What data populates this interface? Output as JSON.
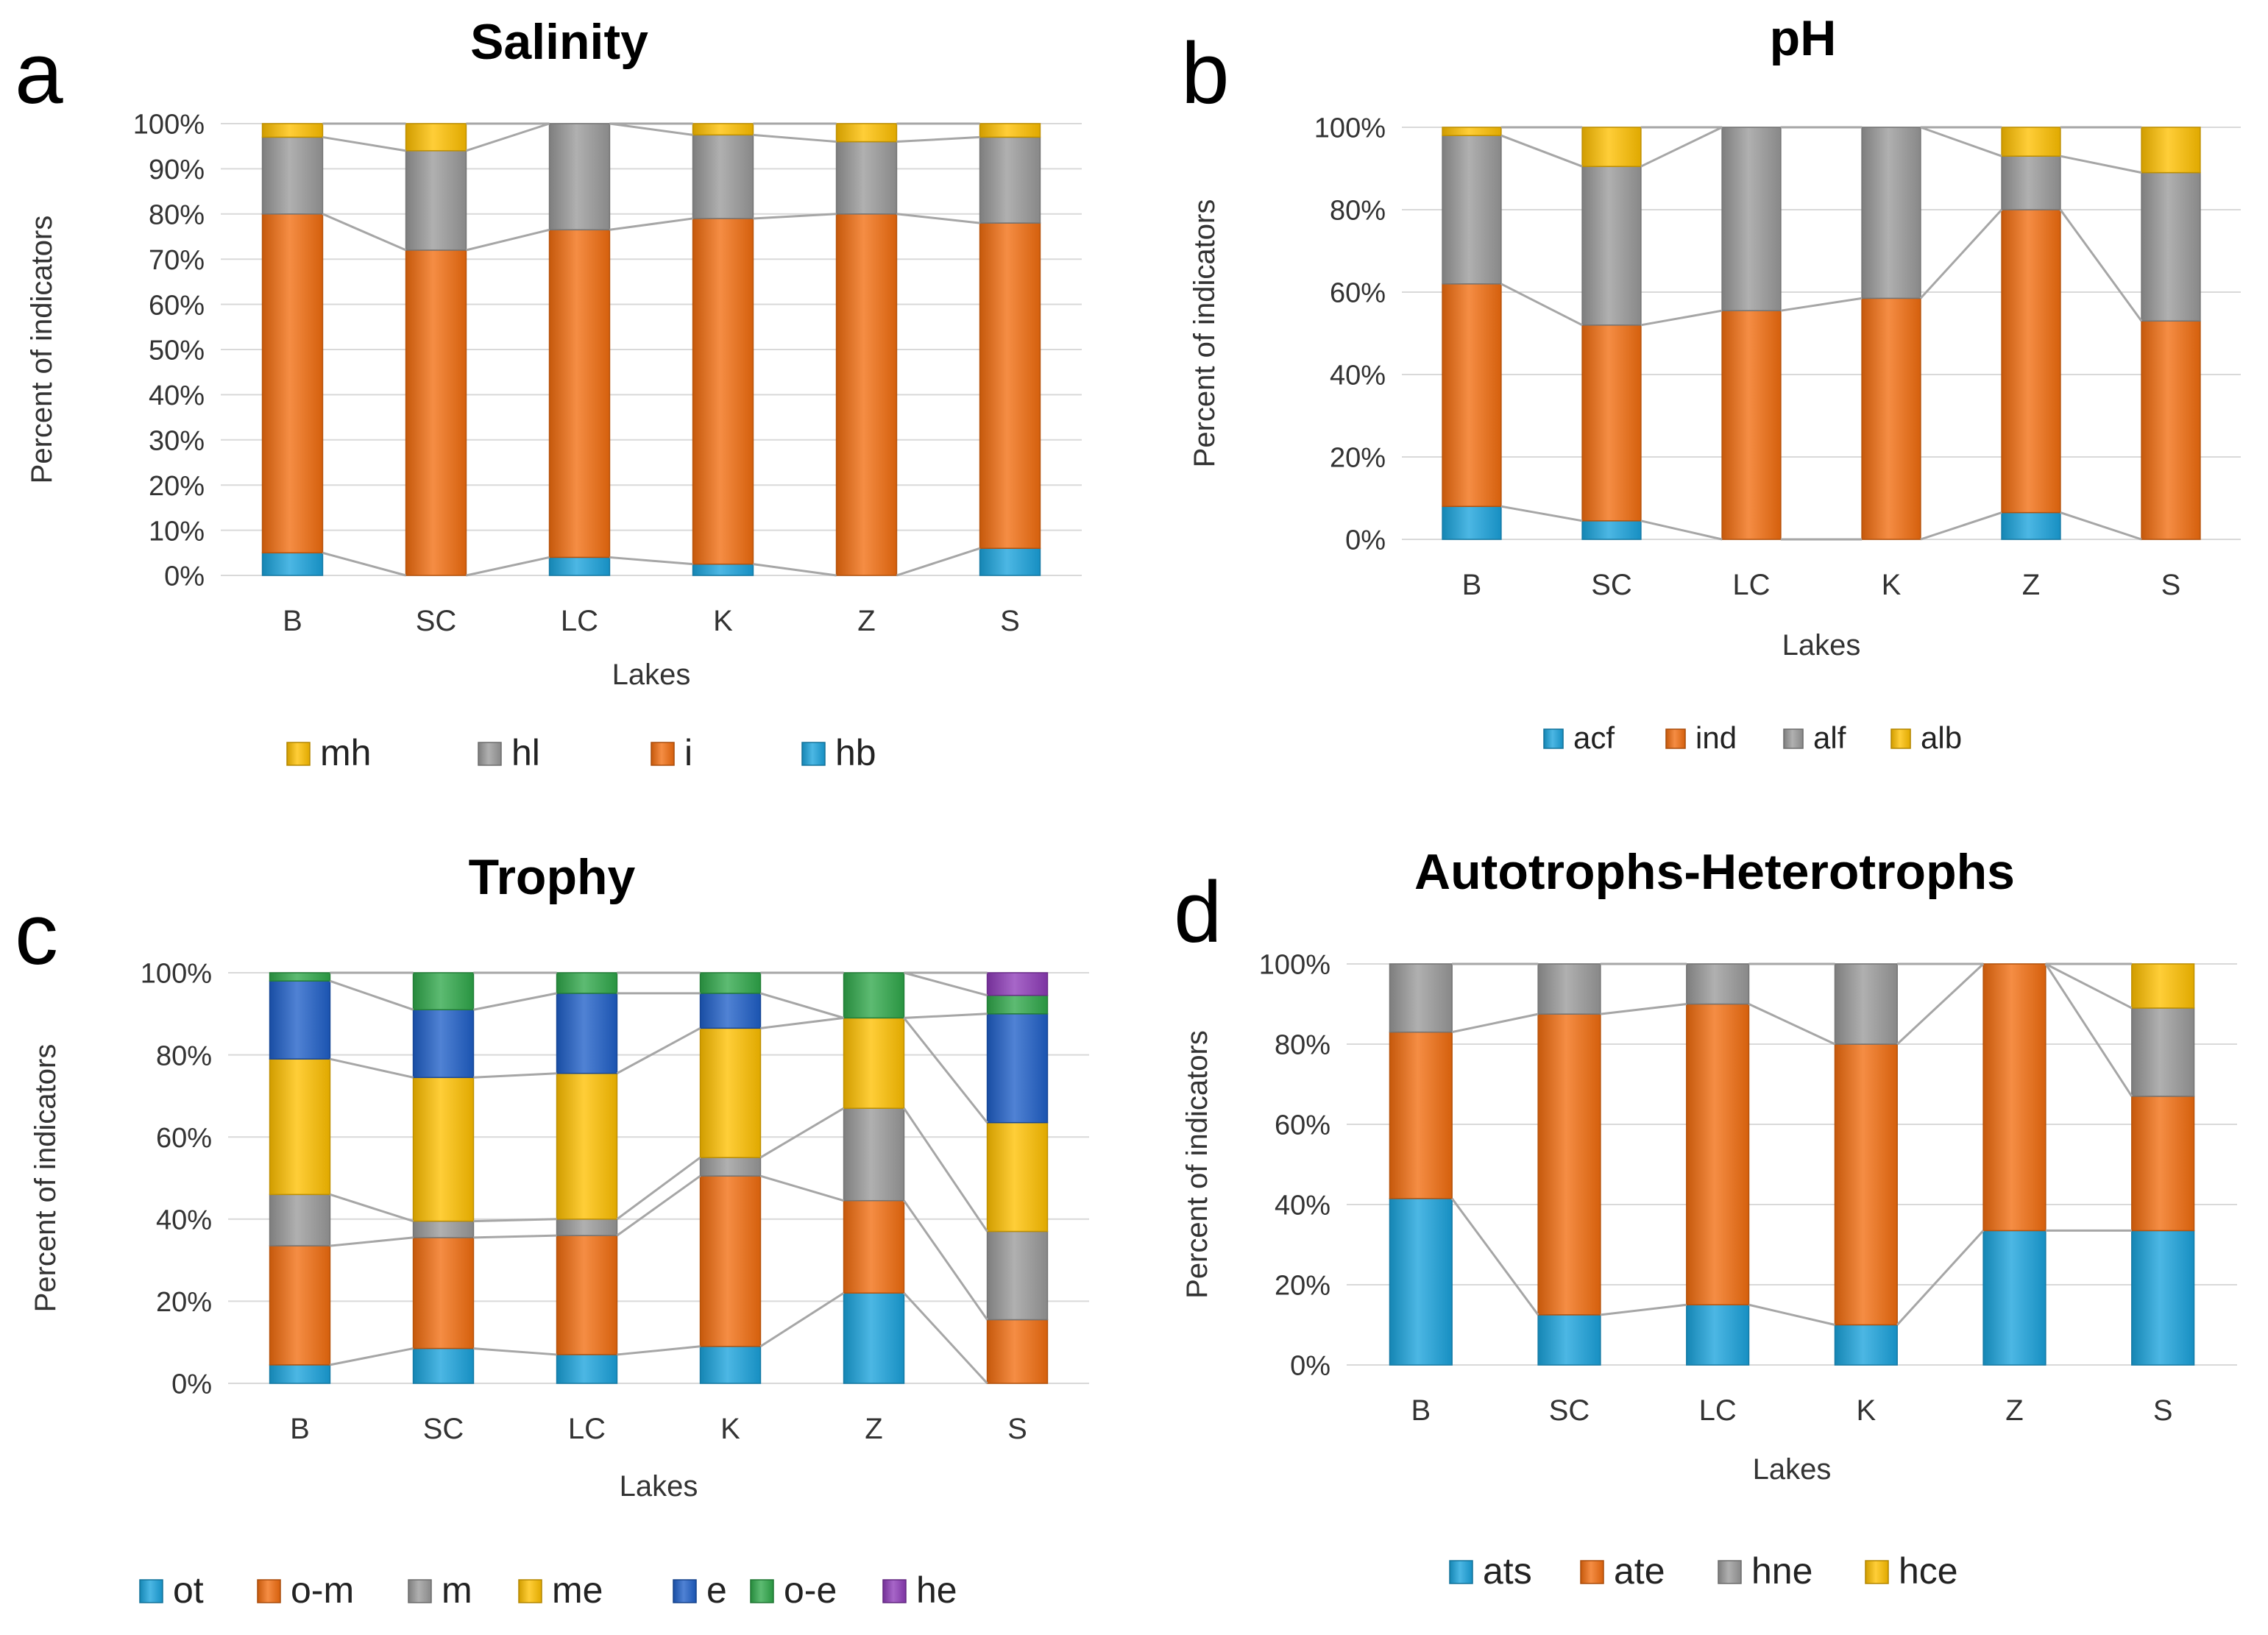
{
  "colors": {
    "blue": "#1aa3dc",
    "orange": "#f26d0f",
    "gray": "#9a9a9a",
    "yellow": "#ffc000",
    "navy": "#1f5fc8",
    "green": "#2fa84a",
    "purple": "#8e3bb8"
  },
  "chart_data": [
    {
      "id": "a",
      "panel_label": "a",
      "type": "bar",
      "stacked": true,
      "title": "Salinity",
      "xlabel": "Lakes",
      "ylabel": "Percent of indicators",
      "ylim": [
        0,
        100
      ],
      "yticks": [
        "0%",
        "10%",
        "20%",
        "30%",
        "40%",
        "50%",
        "60%",
        "70%",
        "80%",
        "90%",
        "100%"
      ],
      "categories": [
        "B",
        "SC",
        "LC",
        "K",
        "Z",
        "S"
      ],
      "series": [
        {
          "name": "hb",
          "color": "blue",
          "values": [
            5,
            0,
            4,
            2.5,
            0,
            6
          ]
        },
        {
          "name": "i",
          "color": "orange",
          "values": [
            75,
            72,
            72.5,
            76.5,
            80,
            72
          ]
        },
        {
          "name": "hl",
          "color": "gray",
          "values": [
            17,
            22,
            23.5,
            18.5,
            16,
            19
          ]
        },
        {
          "name": "mh",
          "color": "yellow",
          "values": [
            3,
            6,
            0,
            2.5,
            4,
            3
          ]
        }
      ],
      "legend": [
        "mh",
        "hl",
        "i",
        "hb"
      ],
      "legend_position": "bottom"
    },
    {
      "id": "b",
      "panel_label": "b",
      "type": "bar",
      "stacked": true,
      "title": "pH",
      "xlabel": "Lakes",
      "ylabel": "Percent of indicators",
      "ylim": [
        0,
        100
      ],
      "yticks": [
        "0%",
        "20%",
        "40%",
        "60%",
        "80%",
        "100%"
      ],
      "categories": [
        "B",
        "SC",
        "LC",
        "K",
        "Z",
        "S"
      ],
      "series": [
        {
          "name": "acf",
          "color": "blue",
          "values": [
            8,
            4.5,
            0,
            0,
            6.5,
            0
          ]
        },
        {
          "name": "ind",
          "color": "orange",
          "values": [
            54,
            47.5,
            55.5,
            58.5,
            73.5,
            53
          ]
        },
        {
          "name": "alf",
          "color": "gray",
          "values": [
            36,
            38.5,
            44.5,
            41.5,
            13,
            36
          ]
        },
        {
          "name": "alb",
          "color": "yellow",
          "values": [
            2,
            9.5,
            0,
            0,
            7,
            11
          ]
        }
      ],
      "legend": [
        "acf",
        "ind",
        "alf",
        "alb"
      ],
      "legend_position": "bottom"
    },
    {
      "id": "c",
      "panel_label": "c",
      "type": "bar",
      "stacked": true,
      "title": "Trophy",
      "xlabel": "Lakes",
      "ylabel": "Percent of indicators",
      "ylim": [
        0,
        100
      ],
      "yticks": [
        "0%",
        "20%",
        "40%",
        "60%",
        "80%",
        "100%"
      ],
      "categories": [
        "B",
        "SC",
        "LC",
        "K",
        "Z",
        "S"
      ],
      "series": [
        {
          "name": "ot",
          "color": "blue",
          "values": [
            4.5,
            8.5,
            7,
            9,
            22,
            0
          ]
        },
        {
          "name": "o-m",
          "color": "orange",
          "values": [
            29,
            27,
            29,
            41.5,
            22.5,
            15.5
          ]
        },
        {
          "name": "m",
          "color": "gray",
          "values": [
            12.5,
            4,
            4,
            4.5,
            22.5,
            21.5
          ]
        },
        {
          "name": "me",
          "color": "yellow",
          "values": [
            33,
            35,
            35.5,
            31.5,
            22,
            26.5
          ]
        },
        {
          "name": "e",
          "color": "navy",
          "values": [
            19,
            16.5,
            19.5,
            8.5,
            0,
            26.5
          ]
        },
        {
          "name": "o-e",
          "color": "green",
          "values": [
            2,
            9,
            5,
            5,
            11,
            4.5
          ]
        },
        {
          "name": "he",
          "color": "purple",
          "values": [
            0,
            0,
            0,
            0,
            0,
            5.5
          ]
        }
      ],
      "legend": [
        "ot",
        "o-m",
        "m",
        "me",
        "e",
        "o-e",
        "he"
      ],
      "legend_position": "bottom"
    },
    {
      "id": "d",
      "panel_label": "d",
      "type": "bar",
      "stacked": true,
      "title": "Autotrophs-Heterotrophs",
      "xlabel": "Lakes",
      "ylabel": "Percent of indicators",
      "ylim": [
        0,
        100
      ],
      "yticks": [
        "0%",
        "20%",
        "40%",
        "60%",
        "80%",
        "100%"
      ],
      "categories": [
        "B",
        "SC",
        "LC",
        "K",
        "Z",
        "S"
      ],
      "series": [
        {
          "name": "ats",
          "color": "blue",
          "values": [
            41.5,
            12.5,
            15,
            10,
            33.5,
            33.5
          ]
        },
        {
          "name": "ate",
          "color": "orange",
          "values": [
            41.5,
            75,
            75,
            70,
            66.5,
            33.5
          ]
        },
        {
          "name": "hne",
          "color": "gray",
          "values": [
            17,
            12.5,
            10,
            20,
            0,
            22
          ]
        },
        {
          "name": "hce",
          "color": "yellow",
          "values": [
            0,
            0,
            0,
            0,
            0,
            11
          ]
        }
      ],
      "legend": [
        "ats",
        "ate",
        "hne",
        "hce"
      ],
      "legend_position": "bottom"
    }
  ]
}
